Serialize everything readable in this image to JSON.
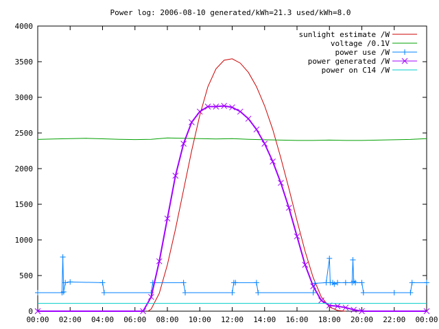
{
  "chart_data": {
    "type": "line",
    "title": "Power log: 2006-08-10 generated/kWh=21.3 used/kWh=8.0",
    "xlabel": "",
    "ylabel": "",
    "xlim": [
      0,
      24
    ],
    "ylim": [
      0,
      4000
    ],
    "grid": false,
    "legend_position": "top-right",
    "x_ticks": [
      {
        "v": 0,
        "label": "00:00"
      },
      {
        "v": 2,
        "label": "02:00"
      },
      {
        "v": 4,
        "label": "04:00"
      },
      {
        "v": 6,
        "label": "06:00"
      },
      {
        "v": 8,
        "label": "08:00"
      },
      {
        "v": 10,
        "label": "10:00"
      },
      {
        "v": 12,
        "label": "12:00"
      },
      {
        "v": 14,
        "label": "14:00"
      },
      {
        "v": 16,
        "label": "16:00"
      },
      {
        "v": 18,
        "label": "18:00"
      },
      {
        "v": 20,
        "label": "20:00"
      },
      {
        "v": 22,
        "label": "22:00"
      },
      {
        "v": 24,
        "label": "00:00"
      }
    ],
    "y_ticks": [
      {
        "v": 0,
        "label": "0"
      },
      {
        "v": 500,
        "label": "500"
      },
      {
        "v": 1000,
        "label": "1000"
      },
      {
        "v": 1500,
        "label": "1500"
      },
      {
        "v": 2000,
        "label": "2000"
      },
      {
        "v": 2500,
        "label": "2500"
      },
      {
        "v": 3000,
        "label": "3000"
      },
      {
        "v": 3500,
        "label": "3500"
      },
      {
        "v": 4000,
        "label": "4000"
      }
    ],
    "series": [
      {
        "name": "sunlight estimate /W",
        "color": "#cc0000",
        "marker": "none",
        "x": [
          6.8,
          7.0,
          7.5,
          8.0,
          8.5,
          9.0,
          9.5,
          10.0,
          10.5,
          11.0,
          11.5,
          12.0,
          12.5,
          13.0,
          13.5,
          14.0,
          14.5,
          15.0,
          15.5,
          16.0,
          16.5,
          17.0,
          17.5,
          18.0,
          18.5,
          19.0
        ],
        "y": [
          0,
          30,
          250,
          650,
          1150,
          1700,
          2250,
          2750,
          3150,
          3400,
          3520,
          3540,
          3480,
          3350,
          3150,
          2880,
          2550,
          2150,
          1720,
          1270,
          840,
          470,
          200,
          60,
          10,
          0
        ]
      },
      {
        "name": "voltage /0.1V",
        "color": "#00a000",
        "marker": "none",
        "x": [
          0,
          1,
          2,
          3,
          4,
          5,
          6,
          7,
          8,
          9,
          10,
          11,
          12,
          13,
          14,
          15,
          16,
          17,
          18,
          19,
          20,
          21,
          22,
          23,
          24
        ],
        "y": [
          2410,
          2415,
          2420,
          2425,
          2418,
          2412,
          2408,
          2412,
          2430,
          2425,
          2420,
          2415,
          2420,
          2412,
          2405,
          2400,
          2395,
          2395,
          2400,
          2395,
          2395,
          2400,
          2405,
          2410,
          2420
        ]
      },
      {
        "name": "power use /W",
        "color": "#0080ff",
        "marker": "plus",
        "x": [
          0,
          1.5,
          1.55,
          1.6,
          1.7,
          2.0,
          4.0,
          4.1,
          7.0,
          7.1,
          9.0,
          9.1,
          12.0,
          12.1,
          12.2,
          13.5,
          13.6,
          17.0,
          17.1,
          17.8,
          18.0,
          18.05,
          18.2,
          18.3,
          18.5,
          19.0,
          19.4,
          19.45,
          19.5,
          19.6,
          20.0,
          20.1,
          22.0,
          23.0,
          23.1,
          24.0
        ],
        "y": [
          260,
          260,
          760,
          270,
          400,
          410,
          400,
          260,
          260,
          400,
          400,
          260,
          260,
          400,
          400,
          400,
          260,
          260,
          390,
          400,
          740,
          400,
          400,
          380,
          400,
          400,
          400,
          720,
          420,
          400,
          400,
          260,
          260,
          260,
          400,
          400
        ]
      },
      {
        "name": "power generated /W",
        "color": "#a000ff",
        "marker": "cross",
        "x": [
          0,
          6.5,
          7.0,
          7.5,
          8.0,
          8.5,
          9.0,
          9.5,
          10.0,
          10.5,
          11.0,
          11.5,
          12.0,
          12.5,
          13.0,
          13.5,
          14.0,
          14.5,
          15.0,
          15.5,
          16.0,
          16.5,
          17.0,
          17.5,
          18.0,
          18.5,
          19.0,
          19.5,
          20.0,
          24.0
        ],
        "y": [
          0,
          0,
          200,
          700,
          1300,
          1900,
          2350,
          2650,
          2800,
          2870,
          2870,
          2880,
          2860,
          2800,
          2700,
          2550,
          2350,
          2100,
          1800,
          1450,
          1050,
          650,
          350,
          150,
          80,
          70,
          50,
          20,
          0,
          0
        ]
      },
      {
        "name": "power on C14 /W",
        "color": "#00cccc",
        "marker": "none",
        "x": [
          0,
          24
        ],
        "y": [
          110,
          110
        ]
      }
    ]
  }
}
